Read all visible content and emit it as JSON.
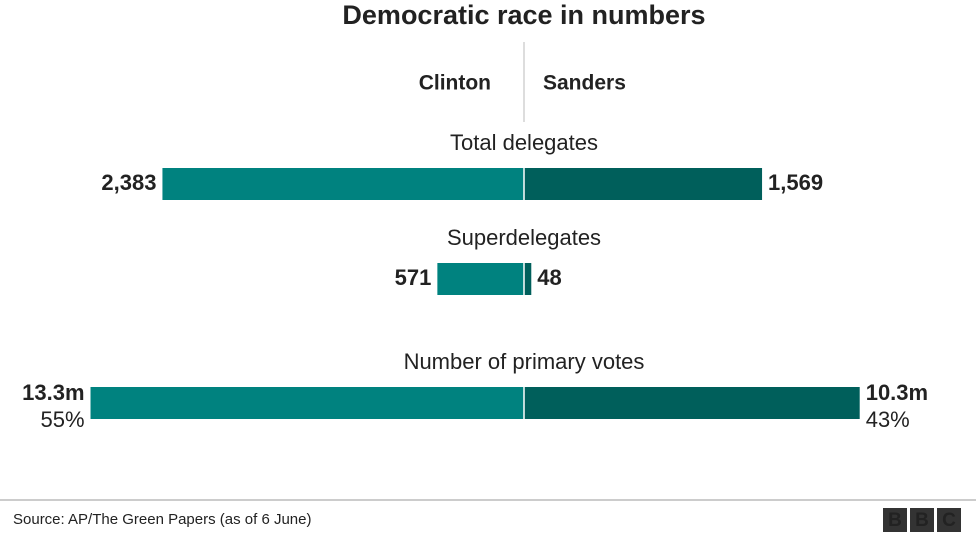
{
  "chart_data": {
    "type": "butterfly",
    "title": "Democratic race in numbers",
    "series": [
      {
        "name": "Clinton",
        "color": "#00827f",
        "label_color": "#137c7c"
      },
      {
        "name": "Sanders",
        "color": "#005f5b",
        "label_color": "#137c7c"
      }
    ],
    "groups": [
      {
        "label": "Total delegates",
        "values": [
          2383,
          1569
        ],
        "value_labels": [
          "2,383",
          "1,569"
        ],
        "xlim": [
          0,
          2900
        ]
      },
      {
        "label": "Superdelegates",
        "values": [
          571,
          48
        ],
        "xlim": [
          0,
          2900
        ]
      },
      {
        "label": "Number of primary votes",
        "values": [
          13.3,
          10.3
        ],
        "value_labels": [
          "13.3m",
          "10.3m"
        ],
        "share_labels": [
          "55%",
          "43%"
        ],
        "xlim": [
          0,
          13.5
        ]
      }
    ],
    "source": "Source: AP/The Green Papers (as of 6 June)",
    "logo": [
      "B",
      "B",
      "C"
    ]
  }
}
